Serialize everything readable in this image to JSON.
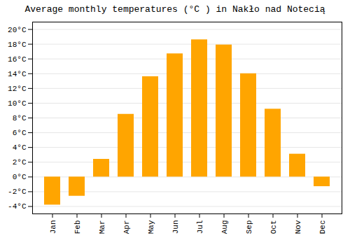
{
  "chart_data": {
    "type": "bar",
    "title": "Average monthly temperatures (°C ) in Nakło nad Notecią",
    "categories": [
      "Jan",
      "Feb",
      "Mar",
      "Apr",
      "May",
      "Jun",
      "Jul",
      "Aug",
      "Sep",
      "Oct",
      "Nov",
      "Dec"
    ],
    "values": [
      -3.8,
      -2.6,
      2.4,
      8.5,
      13.6,
      16.7,
      18.6,
      17.9,
      14.0,
      9.2,
      3.1,
      -1.3
    ],
    "color": "#FFA500",
    "ylim": [
      -5,
      21
    ],
    "yticks": [
      {
        "value": -4,
        "label": "-4°C"
      },
      {
        "value": -2,
        "label": "-2°C"
      },
      {
        "value": 0,
        "label": "0°C"
      },
      {
        "value": 2,
        "label": "2°C"
      },
      {
        "value": 4,
        "label": "4°C"
      },
      {
        "value": 6,
        "label": "6°C"
      },
      {
        "value": 8,
        "label": "8°C"
      },
      {
        "value": 10,
        "label": "10°C"
      },
      {
        "value": 12,
        "label": "12°C"
      },
      {
        "value": 14,
        "label": "14°C"
      },
      {
        "value": 16,
        "label": "16°C"
      },
      {
        "value": 18,
        "label": "18°C"
      },
      {
        "value": 20,
        "label": "20°C"
      }
    ],
    "grid": true
  }
}
